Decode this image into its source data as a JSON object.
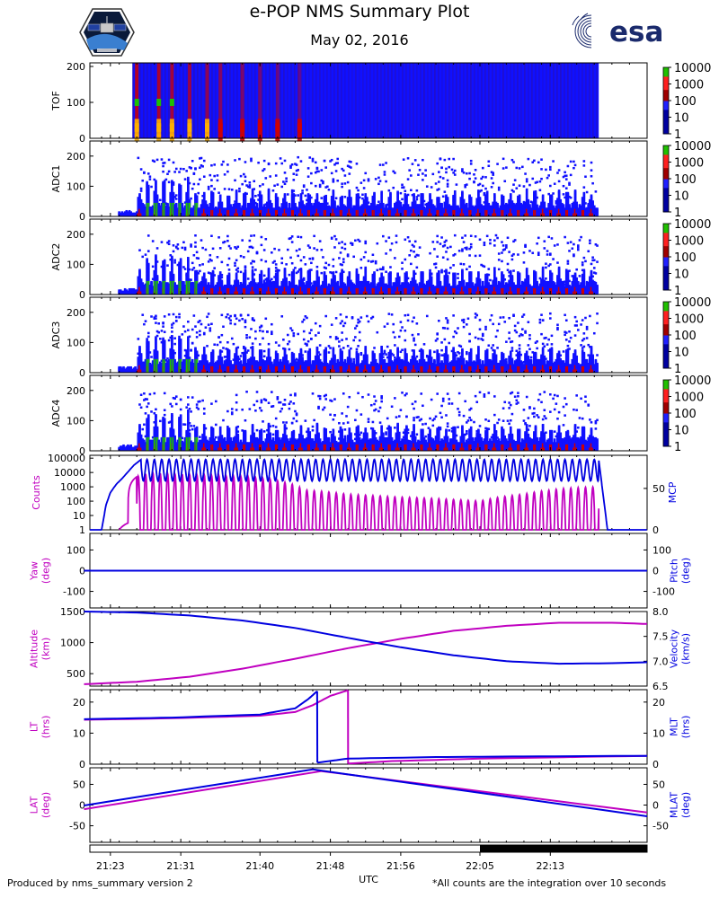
{
  "title": "e-POP NMS Summary Plot",
  "subtitle": "May 02, 2016",
  "footer_left": "Produced by nms_summary version 2",
  "footer_right": "*All counts are the integration over 10 seconds",
  "esa_text": "esa",
  "colors": {
    "magenta": "#c000c0",
    "blue": "#0000e0",
    "spectro_bg": "#1010ff",
    "spectro_red": "#d00000",
    "spectro_green": "#20c000"
  },
  "chart_data": [
    {
      "id": "tof",
      "type": "heatmap",
      "ylabel": "TOF",
      "ylim": [
        0,
        210
      ],
      "yticks": [
        0,
        100,
        200
      ],
      "data_x_range": [
        "21:25:30",
        "22:18:30"
      ],
      "colorbar_ticks": [
        "1",
        "10",
        "100",
        "1000",
        "10000"
      ],
      "peak_times": [
        "21:26:00",
        "21:28:30",
        "21:30:00",
        "21:32:00",
        "21:34:00",
        "21:35:30",
        "21:38:00",
        "21:40:00",
        "21:42:00",
        "21:44:30"
      ]
    },
    {
      "id": "adc1",
      "type": "heatmap",
      "ylabel": "ADC1",
      "ylim": [
        0,
        250
      ],
      "yticks": [
        0,
        100,
        200
      ],
      "data_x_range": [
        "21:24:00",
        "22:18:30"
      ],
      "colorbar_ticks": [
        "1",
        "10",
        "100",
        "1000",
        "10000"
      ]
    },
    {
      "id": "adc2",
      "type": "heatmap",
      "ylabel": "ADC2",
      "ylim": [
        0,
        250
      ],
      "yticks": [
        0,
        100,
        200
      ],
      "data_x_range": [
        "21:24:00",
        "22:18:30"
      ],
      "colorbar_ticks": [
        "1",
        "10",
        "100",
        "1000",
        "10000"
      ]
    },
    {
      "id": "adc3",
      "type": "heatmap",
      "ylabel": "ADC3",
      "ylim": [
        0,
        250
      ],
      "yticks": [
        0,
        100,
        200
      ],
      "data_x_range": [
        "21:24:00",
        "22:18:30"
      ],
      "colorbar_ticks": [
        "1",
        "10",
        "100",
        "1000",
        "10000"
      ]
    },
    {
      "id": "adc4",
      "type": "heatmap",
      "ylabel": "ADC4",
      "ylim": [
        0,
        250
      ],
      "yticks": [
        0,
        100,
        200
      ],
      "data_x_range": [
        "21:24:00",
        "22:18:30"
      ],
      "colorbar_ticks": [
        "1",
        "10",
        "100",
        "1000",
        "10000"
      ]
    },
    {
      "id": "counts_mcp",
      "type": "line",
      "ylabel_left": "Counts",
      "ylabel_right": "MCP",
      "left_scale": "log",
      "left_yticks": [
        "1",
        "10",
        "100",
        "1000",
        "10000",
        "100000"
      ],
      "right_ylim": [
        0,
        90
      ],
      "right_yticks": [
        0,
        50
      ],
      "series": [
        {
          "name": "Counts",
          "axis": "left",
          "color": "magenta",
          "description": "oscillating count rate, peaks 1e3-1e4, dips to ~1",
          "x": [
            "21:24:00",
            "21:25:00",
            "21:26:00",
            "21:27:00",
            "21:28:00",
            "21:30:00",
            "21:35:00",
            "21:40:00",
            "21:45:00",
            "21:50:00",
            "21:55:00",
            "22:00:00",
            "22:05:00",
            "22:10:00",
            "22:15:00",
            "22:18:30"
          ],
          "peak_values": [
            1,
            3,
            5000,
            8000,
            9000,
            8000,
            6000,
            4000,
            600,
            300,
            200,
            150,
            100,
            300,
            800,
            1000
          ]
        },
        {
          "name": "MCP",
          "axis": "right",
          "color": "blue",
          "x": [
            "21:20:00",
            "21:22:00",
            "21:22:30",
            "21:23:00",
            "21:23:40",
            "21:24:20",
            "21:25:00",
            "21:25:40",
            "21:26:30",
            "22:18:30",
            "22:19:30",
            "22:24:00"
          ],
          "y": [
            0,
            0,
            30,
            45,
            55,
            62,
            70,
            78,
            85,
            85,
            0,
            0
          ]
        }
      ]
    },
    {
      "id": "yaw_pitch",
      "type": "line",
      "ylabel_left": "Yaw\n(deg)",
      "ylabel_right": "Pitch\n(deg)",
      "left_ylim": [
        -180,
        180
      ],
      "left_yticks": [
        -100,
        0,
        100
      ],
      "right_ylim": [
        -180,
        180
      ],
      "right_yticks": [
        -100,
        0,
        100
      ],
      "series": [
        {
          "name": "Yaw",
          "color": "magenta",
          "x": [
            "21:20:00",
            "22:24:00"
          ],
          "y": [
            0,
            0
          ]
        },
        {
          "name": "Pitch",
          "color": "blue",
          "x": [
            "21:20:00",
            "22:24:00"
          ],
          "y": [
            0,
            0
          ]
        }
      ]
    },
    {
      "id": "alt_vel",
      "type": "line",
      "ylabel_left": "Altitude\n(km)",
      "ylabel_right": "Velocity\n(km/s)",
      "left_ylim": [
        300,
        1500
      ],
      "left_yticks": [
        500,
        1000,
        1500
      ],
      "right_ylim": [
        6.5,
        8.0
      ],
      "right_yticks": [
        "6.5",
        "7.0",
        "7.5",
        "8.0"
      ],
      "series": [
        {
          "name": "Altitude",
          "axis": "left",
          "color": "magenta",
          "x": [
            "21:20:00",
            "21:26:00",
            "21:32:00",
            "21:38:00",
            "21:44:00",
            "21:50:00",
            "21:56:00",
            "22:02:00",
            "22:08:00",
            "22:14:00",
            "22:20:00",
            "22:24:00"
          ],
          "y": [
            330,
            370,
            450,
            580,
            740,
            910,
            1060,
            1190,
            1270,
            1320,
            1320,
            1300
          ]
        },
        {
          "name": "Velocity",
          "axis": "right",
          "color": "blue",
          "x": [
            "21:20:00",
            "21:26:00",
            "21:32:00",
            "21:38:00",
            "21:44:00",
            "21:50:00",
            "21:56:00",
            "22:02:00",
            "22:08:00",
            "22:14:00",
            "22:20:00",
            "22:24:00"
          ],
          "y": [
            8.0,
            7.98,
            7.92,
            7.82,
            7.67,
            7.47,
            7.28,
            7.12,
            7.0,
            6.95,
            6.96,
            6.98
          ]
        }
      ]
    },
    {
      "id": "lt_mlt",
      "type": "line",
      "ylabel_left": "LT\n(hrs)",
      "ylabel_right": "MLT\n(hrs)",
      "left_ylim": [
        0,
        24
      ],
      "left_yticks": [
        0,
        10,
        20
      ],
      "right_ylim": [
        0,
        24
      ],
      "right_yticks": [
        0,
        10,
        20
      ],
      "series": [
        {
          "name": "LT",
          "color": "magenta",
          "x": [
            "21:20:00",
            "21:30:00",
            "21:40:00",
            "21:44:00",
            "21:46:00",
            "21:48:00",
            "21:50:00",
            "21:50:01",
            "21:55:00",
            "22:05:00",
            "22:24:00"
          ],
          "y": [
            14.3,
            14.8,
            15.6,
            16.8,
            19.0,
            22.0,
            23.8,
            0.2,
            1.0,
            1.8,
            2.7
          ]
        },
        {
          "name": "MLT",
          "color": "blue",
          "x": [
            "21:20:00",
            "21:30:00",
            "21:40:00",
            "21:44:00",
            "21:45:30",
            "21:46:30",
            "21:46:31",
            "21:50:00",
            "22:00:00",
            "22:10:00",
            "22:24:00"
          ],
          "y": [
            14.5,
            15.0,
            16.0,
            18.0,
            21.0,
            23.5,
            0.5,
            1.8,
            2.3,
            2.5,
            2.7
          ]
        }
      ]
    },
    {
      "id": "lat_mlat",
      "type": "line",
      "ylabel_left": "LAT\n(deg)",
      "ylabel_right": "MLAT\n(deg)",
      "left_ylim": [
        -90,
        90
      ],
      "left_yticks": [
        -50,
        0,
        50
      ],
      "right_ylim": [
        -90,
        90
      ],
      "right_yticks": [
        -50,
        0,
        50
      ],
      "series": [
        {
          "name": "LAT",
          "color": "magenta",
          "x": [
            "21:20:00",
            "21:47:00",
            "22:24:00"
          ],
          "y": [
            -10,
            82,
            -18
          ]
        },
        {
          "name": "MLAT",
          "color": "blue",
          "x": [
            "21:20:00",
            "21:46:00",
            "22:24:00"
          ],
          "y": [
            -1,
            86,
            -27
          ]
        }
      ]
    }
  ],
  "x_axis": {
    "label": "UTC",
    "range": [
      "21:20:40",
      "22:24:00"
    ],
    "tick_labels": [
      "21:23",
      "21:31",
      "21:40",
      "21:48",
      "21:56",
      "22:05",
      "22:13"
    ],
    "eclipse_start": "22:05:00"
  }
}
